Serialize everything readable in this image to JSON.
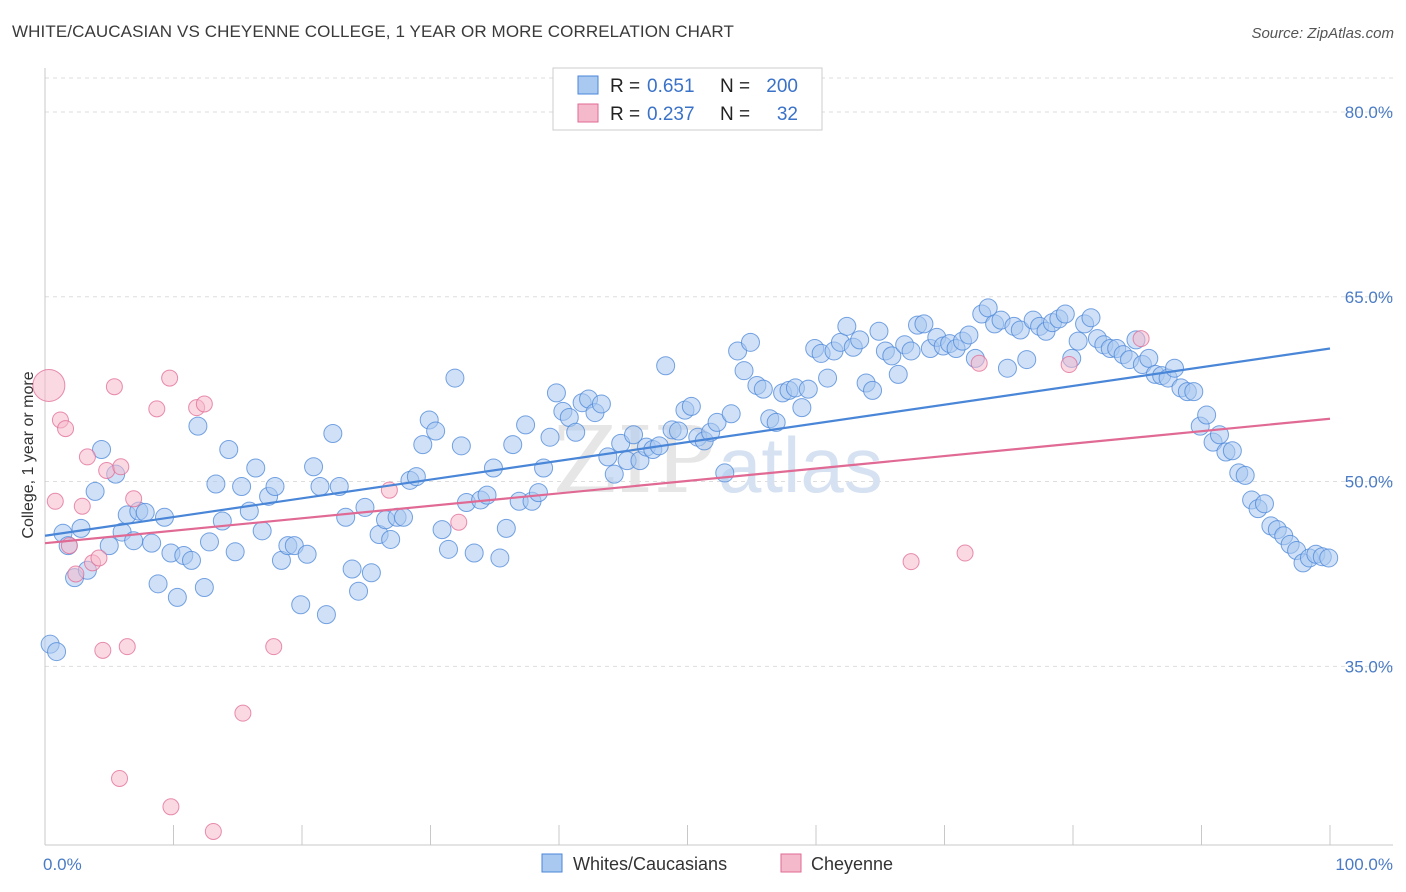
{
  "title": "WHITE/CAUCASIAN VS CHEYENNE COLLEGE, 1 YEAR OR MORE CORRELATION CHART",
  "source": "Source: ZipAtlas.com",
  "colors": {
    "blue": "#4a86d8",
    "blue_fill": "#a9c9f0",
    "pink": "#e06a94",
    "pink_fill": "#f5b9cc",
    "tick": "#4a7bc4"
  },
  "legend": {
    "rows": [
      {
        "r_label": "R =",
        "r_value": "0.651",
        "n_label": "N =",
        "n_value": "200"
      },
      {
        "r_label": "R =",
        "r_value": "0.237",
        "n_label": "N =",
        "n_value": "32"
      }
    ]
  },
  "bottom_legend": [
    "Whites/Caucasians",
    "Cheyenne"
  ],
  "watermark": {
    "zip": "ZIP",
    "atlas": "atlas"
  },
  "chart_data": {
    "type": "scatter",
    "xlabel": "",
    "ylabel": "College, 1 year or more",
    "xlim": [
      0,
      100
    ],
    "ylim": [
      20.5,
      83
    ],
    "x_tick_labels": [
      "0.0%",
      "100.0%"
    ],
    "y_ticks": [
      35,
      50,
      65,
      80
    ],
    "y_tick_labels": [
      "35.0%",
      "50.0%",
      "65.0%",
      "80.0%"
    ],
    "grid": true,
    "legend_position": "top-center",
    "series": [
      {
        "name": "Whites/Caucasians",
        "trend": [
          [
            0,
            45.6
          ],
          [
            100,
            60.8
          ]
        ],
        "points": [
          [
            0.4,
            36.8
          ],
          [
            0.9,
            36.2
          ],
          [
            1.4,
            45.8
          ],
          [
            1.8,
            44.8
          ],
          [
            2.3,
            42.2
          ],
          [
            2.8,
            46.2
          ],
          [
            3.3,
            42.8
          ],
          [
            3.9,
            49.2
          ],
          [
            4.4,
            52.6
          ],
          [
            5.0,
            44.8
          ],
          [
            5.5,
            50.6
          ],
          [
            6.0,
            45.9
          ],
          [
            6.4,
            47.3
          ],
          [
            6.9,
            45.2
          ],
          [
            7.3,
            47.6
          ],
          [
            7.8,
            47.5
          ],
          [
            8.3,
            45.0
          ],
          [
            8.8,
            41.7
          ],
          [
            9.3,
            47.1
          ],
          [
            9.8,
            44.2
          ],
          [
            10.3,
            40.6
          ],
          [
            10.8,
            44.0
          ],
          [
            11.4,
            43.6
          ],
          [
            11.9,
            54.5
          ],
          [
            12.4,
            41.4
          ],
          [
            12.8,
            45.1
          ],
          [
            13.3,
            49.8
          ],
          [
            13.8,
            46.8
          ],
          [
            14.3,
            52.6
          ],
          [
            14.8,
            44.3
          ],
          [
            15.3,
            49.6
          ],
          [
            15.9,
            47.6
          ],
          [
            16.4,
            51.1
          ],
          [
            16.9,
            46.0
          ],
          [
            17.4,
            48.8
          ],
          [
            17.9,
            49.6
          ],
          [
            18.4,
            43.6
          ],
          [
            18.9,
            44.8
          ],
          [
            19.4,
            44.8
          ],
          [
            19.9,
            40.0
          ],
          [
            20.4,
            44.1
          ],
          [
            20.9,
            51.2
          ],
          [
            21.4,
            49.6
          ],
          [
            21.9,
            39.2
          ],
          [
            22.4,
            53.9
          ],
          [
            22.9,
            49.6
          ],
          [
            23.4,
            47.1
          ],
          [
            23.9,
            42.9
          ],
          [
            24.4,
            41.1
          ],
          [
            24.9,
            47.9
          ],
          [
            25.4,
            42.6
          ],
          [
            26.0,
            45.7
          ],
          [
            26.5,
            46.9
          ],
          [
            26.9,
            45.3
          ],
          [
            27.4,
            47.1
          ],
          [
            27.9,
            47.1
          ],
          [
            28.4,
            50.1
          ],
          [
            28.9,
            50.4
          ],
          [
            29.4,
            53.0
          ],
          [
            29.9,
            55.0
          ],
          [
            30.4,
            54.1
          ],
          [
            30.9,
            46.1
          ],
          [
            31.4,
            44.5
          ],
          [
            31.9,
            58.4
          ],
          [
            32.4,
            52.9
          ],
          [
            32.8,
            48.3
          ],
          [
            33.4,
            44.2
          ],
          [
            33.9,
            48.5
          ],
          [
            34.4,
            48.9
          ],
          [
            34.9,
            51.1
          ],
          [
            35.4,
            43.8
          ],
          [
            35.9,
            46.2
          ],
          [
            36.4,
            53.0
          ],
          [
            36.9,
            48.4
          ],
          [
            37.4,
            54.6
          ],
          [
            37.9,
            48.4
          ],
          [
            38.4,
            49.1
          ],
          [
            38.8,
            51.1
          ],
          [
            39.3,
            53.6
          ],
          [
            39.8,
            57.2
          ],
          [
            40.3,
            55.7
          ],
          [
            40.8,
            55.2
          ],
          [
            41.3,
            54.0
          ],
          [
            41.8,
            56.4
          ],
          [
            42.3,
            56.7
          ],
          [
            42.8,
            55.6
          ],
          [
            43.3,
            56.3
          ],
          [
            43.8,
            52.0
          ],
          [
            44.3,
            50.6
          ],
          [
            44.8,
            53.1
          ],
          [
            45.3,
            51.7
          ],
          [
            45.8,
            53.8
          ],
          [
            46.3,
            51.7
          ],
          [
            46.8,
            52.8
          ],
          [
            47.3,
            52.6
          ],
          [
            47.8,
            52.9
          ],
          [
            48.3,
            59.4
          ],
          [
            48.8,
            54.2
          ],
          [
            49.3,
            54.1
          ],
          [
            49.8,
            55.8
          ],
          [
            50.3,
            56.1
          ],
          [
            50.8,
            53.6
          ],
          [
            51.3,
            53.3
          ],
          [
            51.8,
            54.0
          ],
          [
            52.3,
            54.8
          ],
          [
            52.9,
            50.7
          ],
          [
            53.4,
            55.5
          ],
          [
            53.9,
            60.6
          ],
          [
            54.4,
            59.0
          ],
          [
            54.9,
            61.3
          ],
          [
            55.4,
            57.8
          ],
          [
            55.9,
            57.5
          ],
          [
            56.4,
            55.1
          ],
          [
            56.9,
            54.8
          ],
          [
            57.4,
            57.2
          ],
          [
            57.9,
            57.4
          ],
          [
            58.4,
            57.6
          ],
          [
            58.9,
            56.0
          ],
          [
            59.4,
            57.5
          ],
          [
            59.9,
            60.8
          ],
          [
            60.4,
            60.4
          ],
          [
            60.9,
            58.4
          ],
          [
            61.4,
            60.6
          ],
          [
            61.9,
            61.3
          ],
          [
            62.4,
            62.6
          ],
          [
            62.9,
            60.9
          ],
          [
            63.4,
            61.5
          ],
          [
            63.9,
            58.0
          ],
          [
            64.4,
            57.4
          ],
          [
            64.9,
            62.2
          ],
          [
            65.4,
            60.6
          ],
          [
            65.9,
            60.2
          ],
          [
            66.4,
            58.7
          ],
          [
            66.9,
            61.1
          ],
          [
            67.4,
            60.6
          ],
          [
            67.9,
            62.7
          ],
          [
            68.4,
            62.8
          ],
          [
            68.9,
            60.8
          ],
          [
            69.4,
            61.7
          ],
          [
            69.9,
            61.0
          ],
          [
            70.4,
            61.2
          ],
          [
            70.9,
            60.8
          ],
          [
            71.4,
            61.4
          ],
          [
            71.9,
            61.9
          ],
          [
            72.4,
            60.0
          ],
          [
            72.9,
            63.6
          ],
          [
            73.4,
            64.1
          ],
          [
            73.9,
            62.8
          ],
          [
            74.4,
            63.1
          ],
          [
            74.9,
            59.2
          ],
          [
            75.4,
            62.6
          ],
          [
            75.9,
            62.3
          ],
          [
            76.4,
            59.9
          ],
          [
            76.9,
            63.1
          ],
          [
            77.4,
            62.6
          ],
          [
            77.9,
            62.2
          ],
          [
            78.4,
            62.9
          ],
          [
            78.9,
            63.2
          ],
          [
            79.4,
            63.6
          ],
          [
            79.9,
            60.0
          ],
          [
            80.4,
            61.4
          ],
          [
            80.9,
            62.8
          ],
          [
            81.4,
            63.3
          ],
          [
            81.9,
            61.6
          ],
          [
            82.4,
            61.1
          ],
          [
            82.9,
            60.8
          ],
          [
            83.4,
            60.8
          ],
          [
            83.9,
            60.3
          ],
          [
            84.4,
            59.9
          ],
          [
            84.9,
            61.5
          ],
          [
            85.4,
            59.5
          ],
          [
            85.9,
            60.0
          ],
          [
            86.4,
            58.7
          ],
          [
            86.9,
            58.6
          ],
          [
            87.4,
            58.4
          ],
          [
            87.9,
            59.2
          ],
          [
            88.4,
            57.6
          ],
          [
            88.9,
            57.3
          ],
          [
            89.4,
            57.3
          ],
          [
            89.9,
            54.5
          ],
          [
            90.4,
            55.4
          ],
          [
            90.9,
            53.2
          ],
          [
            91.4,
            53.8
          ],
          [
            91.9,
            52.4
          ],
          [
            92.4,
            52.5
          ],
          [
            92.9,
            50.7
          ],
          [
            93.4,
            50.5
          ],
          [
            93.9,
            48.5
          ],
          [
            94.4,
            47.8
          ],
          [
            94.9,
            48.2
          ],
          [
            95.4,
            46.4
          ],
          [
            95.9,
            46.1
          ],
          [
            96.4,
            45.6
          ],
          [
            96.9,
            44.9
          ],
          [
            97.4,
            44.4
          ],
          [
            97.9,
            43.4
          ],
          [
            98.4,
            43.8
          ],
          [
            98.9,
            44.1
          ],
          [
            99.4,
            43.9
          ],
          [
            99.9,
            43.8
          ]
        ]
      },
      {
        "name": "Cheyenne",
        "trend": [
          [
            0,
            45.0
          ],
          [
            100,
            55.1
          ]
        ],
        "points": [
          [
            0.3,
            57.8
          ],
          [
            0.8,
            48.4
          ],
          [
            1.2,
            55.0
          ],
          [
            1.6,
            54.3
          ],
          [
            1.9,
            44.8
          ],
          [
            2.4,
            42.5
          ],
          [
            2.9,
            48.0
          ],
          [
            3.3,
            52.0
          ],
          [
            3.7,
            43.4
          ],
          [
            4.2,
            43.8
          ],
          [
            4.5,
            36.3
          ],
          [
            4.8,
            50.9
          ],
          [
            5.4,
            57.7
          ],
          [
            5.9,
            51.2
          ],
          [
            6.4,
            36.6
          ],
          [
            6.9,
            48.6
          ],
          [
            8.7,
            55.9
          ],
          [
            9.7,
            58.4
          ],
          [
            11.8,
            56.0
          ],
          [
            12.4,
            56.3
          ],
          [
            15.4,
            31.2
          ],
          [
            17.8,
            36.6
          ],
          [
            26.8,
            49.3
          ],
          [
            32.2,
            46.7
          ],
          [
            5.8,
            25.9
          ],
          [
            9.8,
            23.6
          ],
          [
            13.1,
            21.6
          ],
          [
            67.4,
            43.5
          ],
          [
            71.6,
            44.2
          ],
          [
            79.7,
            59.5
          ],
          [
            85.3,
            61.6
          ],
          [
            72.7,
            59.6
          ]
        ]
      }
    ]
  }
}
